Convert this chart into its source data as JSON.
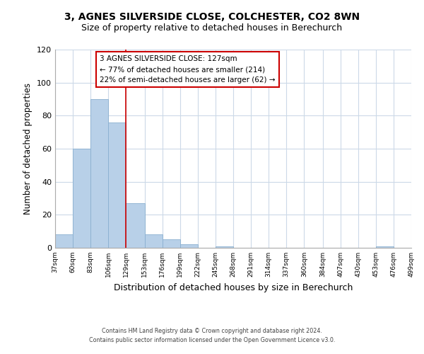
{
  "title1": "3, AGNES SILVERSIDE CLOSE, COLCHESTER, CO2 8WN",
  "title2": "Size of property relative to detached houses in Berechurch",
  "xlabel": "Distribution of detached houses by size in Berechurch",
  "ylabel": "Number of detached properties",
  "bar_edges": [
    37,
    60,
    83,
    106,
    129,
    153,
    176,
    199,
    222,
    245,
    268,
    291,
    314,
    337,
    360,
    384,
    407,
    430,
    453,
    476,
    499
  ],
  "bar_heights": [
    8,
    60,
    90,
    76,
    27,
    8,
    5,
    2,
    0,
    1,
    0,
    0,
    0,
    0,
    0,
    0,
    0,
    0,
    1,
    0
  ],
  "bar_color": "#b8d0e8",
  "reference_line_x": 129,
  "reference_line_color": "#cc0000",
  "annotation_box_color": "#cc0000",
  "annotation_line1": "3 AGNES SILVERSIDE CLOSE: 127sqm",
  "annotation_line2": "← 77% of detached houses are smaller (214)",
  "annotation_line3": "22% of semi-detached houses are larger (62) →",
  "ylim": [
    0,
    120
  ],
  "xlim": [
    37,
    499
  ],
  "tick_labels": [
    "37sqm",
    "60sqm",
    "83sqm",
    "106sqm",
    "129sqm",
    "153sqm",
    "176sqm",
    "199sqm",
    "222sqm",
    "245sqm",
    "268sqm",
    "291sqm",
    "314sqm",
    "337sqm",
    "360sqm",
    "384sqm",
    "407sqm",
    "430sqm",
    "453sqm",
    "476sqm",
    "499sqm"
  ],
  "tick_positions": [
    37,
    60,
    83,
    106,
    129,
    153,
    176,
    199,
    222,
    245,
    268,
    291,
    314,
    337,
    360,
    384,
    407,
    430,
    453,
    476,
    499
  ],
  "background_color": "#ffffff",
  "grid_color": "#ccd9e8",
  "footer1": "Contains HM Land Registry data © Crown copyright and database right 2024.",
  "footer2": "Contains public sector information licensed under the Open Government Licence v3.0.",
  "yticks": [
    0,
    20,
    40,
    60,
    80,
    100,
    120
  ]
}
